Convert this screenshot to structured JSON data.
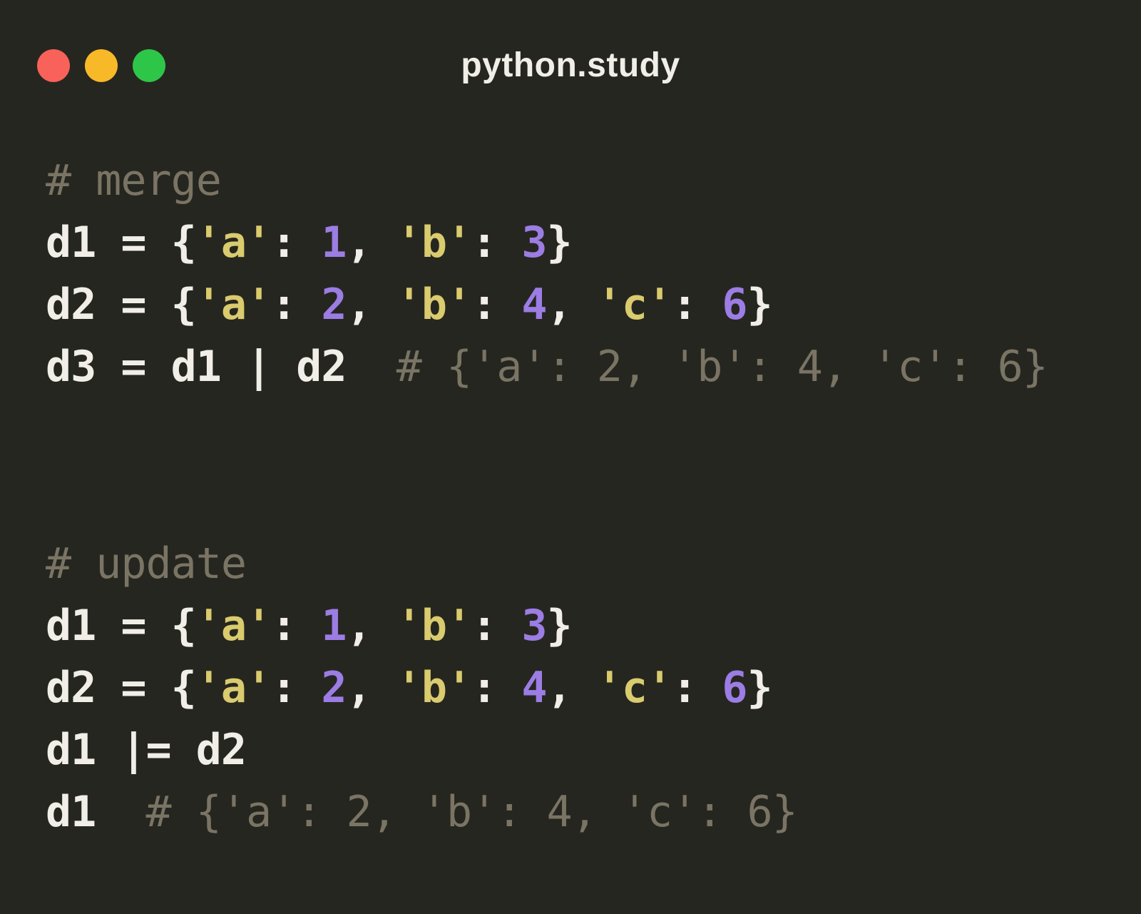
{
  "window": {
    "title": "python.study",
    "traffic_lights": [
      {
        "name": "close-button",
        "color": "#f9625a"
      },
      {
        "name": "minimize-button",
        "color": "#f8b929"
      },
      {
        "name": "zoom-button",
        "color": "#2dc649"
      }
    ]
  },
  "colors": {
    "background": "#262620",
    "plain": "#f0eee7",
    "string": "#d9cb6e",
    "number": "#9b7de4",
    "comment": "#7a7464"
  },
  "code": {
    "blocks": [
      {
        "lines": [
          [
            {
              "type": "comment",
              "text": "# merge"
            }
          ],
          [
            {
              "type": "plain",
              "text": "d1 = {"
            },
            {
              "type": "string",
              "text": "'a'"
            },
            {
              "type": "plain",
              "text": ": "
            },
            {
              "type": "number",
              "text": "1"
            },
            {
              "type": "plain",
              "text": ", "
            },
            {
              "type": "string",
              "text": "'b'"
            },
            {
              "type": "plain",
              "text": ": "
            },
            {
              "type": "number",
              "text": "3"
            },
            {
              "type": "plain",
              "text": "}"
            }
          ],
          [
            {
              "type": "plain",
              "text": "d2 = {"
            },
            {
              "type": "string",
              "text": "'a'"
            },
            {
              "type": "plain",
              "text": ": "
            },
            {
              "type": "number",
              "text": "2"
            },
            {
              "type": "plain",
              "text": ", "
            },
            {
              "type": "string",
              "text": "'b'"
            },
            {
              "type": "plain",
              "text": ": "
            },
            {
              "type": "number",
              "text": "4"
            },
            {
              "type": "plain",
              "text": ", "
            },
            {
              "type": "string",
              "text": "'c'"
            },
            {
              "type": "plain",
              "text": ": "
            },
            {
              "type": "number",
              "text": "6"
            },
            {
              "type": "plain",
              "text": "}"
            }
          ],
          [
            {
              "type": "plain",
              "text": "d3 = d1 | d2"
            },
            {
              "type": "comment",
              "text": "  # {'a': 2, 'b': 4, 'c': 6}"
            }
          ]
        ]
      },
      {
        "lines": [
          [
            {
              "type": "comment",
              "text": "# update"
            }
          ],
          [
            {
              "type": "plain",
              "text": "d1 = {"
            },
            {
              "type": "string",
              "text": "'a'"
            },
            {
              "type": "plain",
              "text": ": "
            },
            {
              "type": "number",
              "text": "1"
            },
            {
              "type": "plain",
              "text": ", "
            },
            {
              "type": "string",
              "text": "'b'"
            },
            {
              "type": "plain",
              "text": ": "
            },
            {
              "type": "number",
              "text": "3"
            },
            {
              "type": "plain",
              "text": "}"
            }
          ],
          [
            {
              "type": "plain",
              "text": "d2 = {"
            },
            {
              "type": "string",
              "text": "'a'"
            },
            {
              "type": "plain",
              "text": ": "
            },
            {
              "type": "number",
              "text": "2"
            },
            {
              "type": "plain",
              "text": ", "
            },
            {
              "type": "string",
              "text": "'b'"
            },
            {
              "type": "plain",
              "text": ": "
            },
            {
              "type": "number",
              "text": "4"
            },
            {
              "type": "plain",
              "text": ", "
            },
            {
              "type": "string",
              "text": "'c'"
            },
            {
              "type": "plain",
              "text": ": "
            },
            {
              "type": "number",
              "text": "6"
            },
            {
              "type": "plain",
              "text": "}"
            }
          ],
          [
            {
              "type": "plain",
              "text": "d1 |= d2"
            }
          ],
          [
            {
              "type": "plain",
              "text": "d1"
            },
            {
              "type": "comment",
              "text": "  # {'a': 2, 'b': 4, 'c': 6}"
            }
          ]
        ]
      }
    ]
  }
}
